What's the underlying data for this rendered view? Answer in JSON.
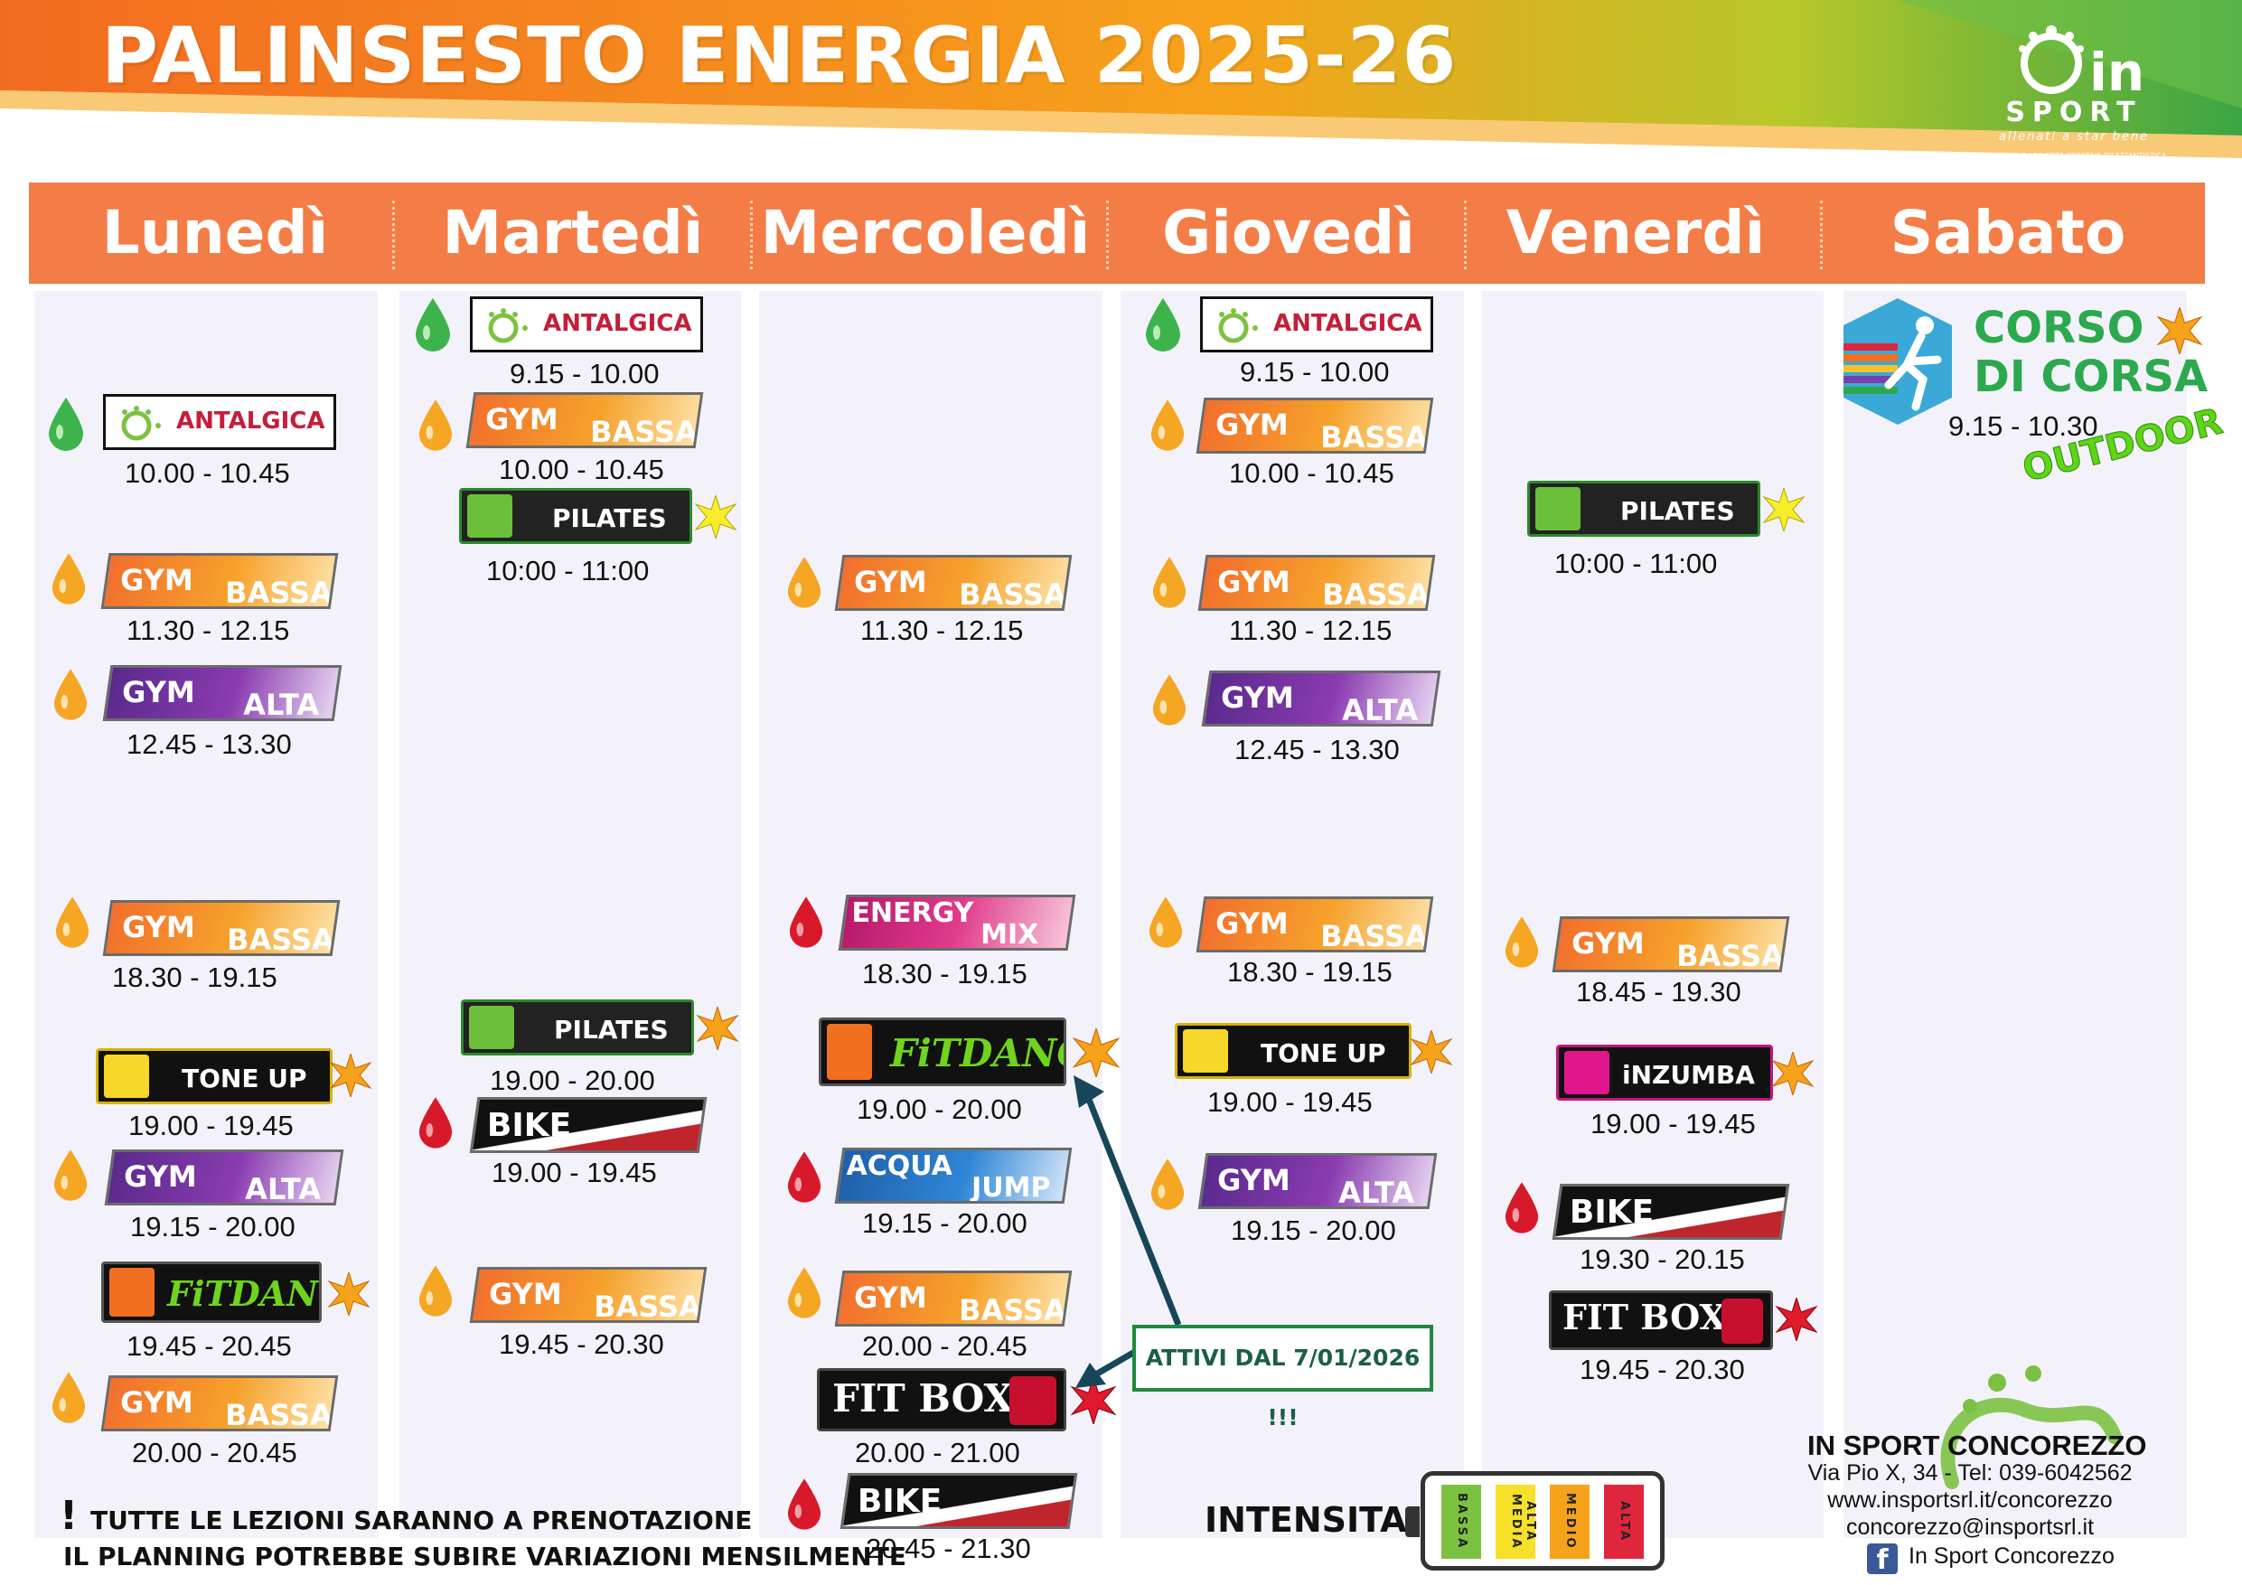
{
  "title": "PALINSESTO ENERGIA 2025-26",
  "logo": {
    "brand": "SPORT",
    "in": "in",
    "tagline": "allenati a star bene",
    "subline": "In Sport Srl SOCIETÀ SPORTIVA DILETTANTISTICA"
  },
  "days": [
    "Lunedì",
    "Martedì",
    "Mercoledì",
    "Giovedì",
    "Venerdì",
    "Sabato"
  ],
  "labels": {
    "gym": "GYM",
    "bassa": "BASSA",
    "alta": "ALTA",
    "antalgica": "ANTALGICA",
    "pilates": "PILATES",
    "tone_up": "TONE UP",
    "bike": "BIKE",
    "energy": "ENERGY",
    "mix": "MIX",
    "acqua": "ACQUA",
    "jump": "JUMP",
    "fitdance": "FiTDANCE",
    "fitboxe": "FIT BOXE",
    "inzumba": "iNZUMBA"
  },
  "times": {
    "mon": [
      "10.00 - 10.45",
      "11.30 - 12.15",
      "12.45 - 13.30",
      "18.30 - 19.15",
      "19.00 - 19.45",
      "19.15 - 20.00",
      "19.45 - 20.45",
      "20.00 - 20.45"
    ],
    "tue": [
      "9.15 - 10.00",
      "10.00 - 10.45",
      "10:00 - 11:00",
      "19.00 - 20.00",
      "19.00 - 19.45",
      "19.45 - 20.30"
    ],
    "wed": [
      "11.30 - 12.15",
      "18.30 - 19.15",
      "19.00 - 20.00",
      "19.15 - 20.00",
      "20.00 - 20.45",
      "20.00 - 21.00",
      "20.45 - 21.30"
    ],
    "thu": [
      "9.15 - 10.00",
      "10.00 - 10.45",
      "11.30 - 12.15",
      "12.45 - 13.30",
      "18.30 - 19.15",
      "19.00 - 19.45",
      "19.15 - 20.00"
    ],
    "fri": [
      "10:00 - 11:00",
      "18.45 - 19.30",
      "19.00 - 19.45",
      "19.30 - 20.15",
      "19.45 - 20.30"
    ],
    "sat": [
      "9.15 - 10.30"
    ]
  },
  "corso": {
    "line1": "CORSO",
    "line2": "DI CORSA",
    "outdoor": "OUTDOOR"
  },
  "attivi": "ATTIVI DAL 7/01/2026 !!!",
  "notes": {
    "bang": "!",
    "line1": "TUTTE LE LEZIONI SARANNO A PRENOTAZIONE",
    "line2": "IL PLANNING POTREBBE SUBIRE VARIAZIONI MENSILMENTE"
  },
  "intensita": {
    "label": "INTENSITA'",
    "levels": [
      "BASSA",
      "MEDIA",
      "MEDIO ALTA",
      "ALTA"
    ]
  },
  "contact": {
    "name": "IN SPORT CONCOREZZO",
    "address": "Via Pio X, 34 - Tel: 039-6042562",
    "web": "www.insportsrl.it/concorezzo",
    "email": "concorezzo@insportsrl.it",
    "facebook": "In Sport Concorezzo"
  },
  "colors": {
    "day_bar": "#f47c46",
    "gym_bassa": "#f6a12b",
    "gym_alta": "#7a34a6",
    "drop_low": "#f5a623",
    "drop_mid": "#3cb44b",
    "drop_high": "#d7192a",
    "accent_green": "#2ca94d"
  }
}
